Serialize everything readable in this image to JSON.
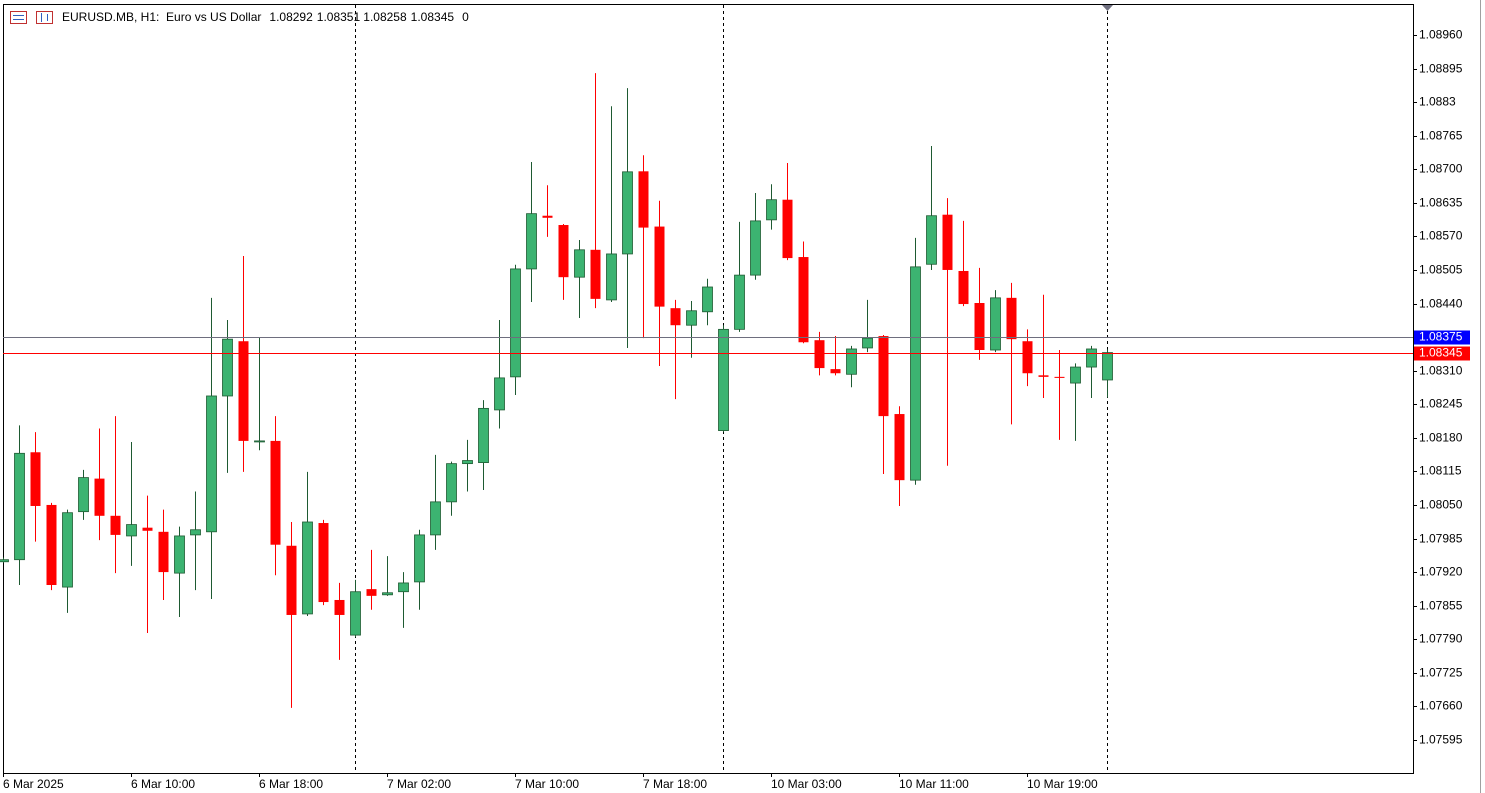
{
  "chart_data": {
    "type": "candlestick",
    "title": "EURUSD.MB, H1:  Euro vs US Dollar",
    "title_tail": "0",
    "up_color": "#3cb371",
    "down_color": "#ff0000",
    "categories": [
      "6 Mar 2025",
      null,
      null,
      null,
      null,
      null,
      null,
      null,
      "6 Mar 10:00",
      null,
      null,
      null,
      null,
      null,
      null,
      null,
      "6 Mar 18:00",
      null,
      null,
      null,
      null,
      null,
      null,
      null,
      "7 Mar 02:00",
      null,
      null,
      null,
      null,
      null,
      null,
      null,
      "7 Mar 10:00",
      null,
      null,
      null,
      null,
      null,
      null,
      null,
      "7 Mar 18:00",
      null,
      null,
      null,
      null,
      null,
      null,
      null,
      "10 Mar 03:00",
      null,
      null,
      null,
      null,
      null,
      null,
      null,
      "10 Mar 11:00",
      null,
      null,
      null,
      null,
      null,
      null,
      null,
      "10 Mar 19:00",
      null,
      null,
      null,
      null,
      null
    ],
    "open": [
      1.0794,
      1.07944,
      1.08152,
      1.0805,
      1.07891,
      1.08037,
      1.08101,
      1.08029,
      1.0799,
      1.08006,
      1.07998,
      1.07918,
      1.07992,
      1.07998,
      1.08261,
      1.08367,
      1.08172,
      1.08174,
      1.07971,
      1.07839,
      1.08015,
      1.07866,
      1.07798,
      1.07887,
      1.07876,
      1.07882,
      1.07901,
      1.07992,
      1.08056,
      1.0813,
      1.08132,
      1.08234,
      1.08298,
      1.08507,
      1.0861,
      1.08592,
      1.08491,
      1.08544,
      1.08447,
      1.08536,
      1.08696,
      1.08589,
      1.08431,
      1.08398,
      1.08424,
      1.08194,
      1.0839,
      1.08495,
      1.08602,
      1.08641,
      1.0853,
      1.08369,
      1.08313,
      1.08303,
      1.08354,
      1.08377,
      1.08226,
      1.08098,
      1.08516,
      1.08612,
      1.08503,
      1.08441,
      1.0835,
      1.08451,
      1.08367,
      1.08301,
      1.08298,
      1.08286,
      1.08317,
      1.08292
    ],
    "high": [
      1.07948,
      1.08204,
      1.08191,
      1.08054,
      1.08041,
      1.08118,
      1.08198,
      1.08222,
      1.08172,
      1.08068,
      1.08041,
      1.08008,
      1.08076,
      1.08451,
      1.08408,
      1.08532,
      1.08375,
      1.08222,
      1.08017,
      1.08114,
      1.08021,
      1.07899,
      1.07905,
      1.07963,
      1.07951,
      1.0792,
      1.08002,
      1.08147,
      1.08134,
      1.08176,
      1.08253,
      1.08408,
      1.08515,
      1.08714,
      1.08669,
      1.08594,
      1.08563,
      1.08886,
      1.08822,
      1.08857,
      1.08727,
      1.08639,
      1.08447,
      1.08445,
      1.08488,
      1.08398,
      1.08598,
      1.08654,
      1.08671,
      1.08712,
      1.0856,
      1.08385,
      1.08377,
      1.08358,
      1.08447,
      1.08379,
      1.08241,
      1.08567,
      1.08745,
      1.08644,
      1.086,
      1.08509,
      1.08466,
      1.0848,
      1.0839,
      1.08457,
      1.0835,
      1.08324,
      1.08358,
      1.08351
    ],
    "low": [
      1.07938,
      1.07895,
      1.07979,
      1.07885,
      1.07841,
      1.08021,
      1.07982,
      1.07918,
      1.07932,
      1.07802,
      1.07866,
      1.07833,
      1.07885,
      1.07868,
      1.08112,
      1.08114,
      1.08156,
      1.07914,
      1.07657,
      1.07835,
      1.07856,
      1.0775,
      1.07794,
      1.07847,
      1.07874,
      1.07812,
      1.07847,
      1.07963,
      1.08029,
      1.08076,
      1.08079,
      1.08198,
      1.08263,
      1.08443,
      1.08569,
      1.08447,
      1.08412,
      1.08431,
      1.08443,
      1.08354,
      1.08373,
      1.08319,
      1.08255,
      1.08335,
      1.08398,
      1.08191,
      1.08385,
      1.08486,
      1.08583,
      1.08524,
      1.08363,
      1.08301,
      1.08301,
      1.08278,
      1.08346,
      1.0811,
      1.08048,
      1.08089,
      1.08505,
      1.08126,
      1.08435,
      1.08331,
      1.08346,
      1.08206,
      1.0828,
      1.08257,
      1.08176,
      1.08174,
      1.08257,
      1.08258
    ],
    "close": [
      1.07944,
      1.0815,
      1.08048,
      1.07895,
      1.08035,
      1.08103,
      1.08029,
      1.07992,
      1.08012,
      1.08,
      1.0792,
      1.0799,
      1.08002,
      1.08261,
      1.08371,
      1.08174,
      1.08174,
      1.07973,
      1.07837,
      1.08017,
      1.07862,
      1.07837,
      1.07882,
      1.07874,
      1.0788,
      1.07899,
      1.07992,
      1.08056,
      1.0813,
      1.08136,
      1.08237,
      1.08296,
      1.08507,
      1.08614,
      1.08606,
      1.08491,
      1.08544,
      1.08449,
      1.08536,
      1.08695,
      1.08587,
      1.08434,
      1.08398,
      1.08426,
      1.08472,
      1.0839,
      1.08495,
      1.086,
      1.08641,
      1.08528,
      1.08365,
      1.08315,
      1.08305,
      1.08352,
      1.08373,
      1.08222,
      1.08098,
      1.08511,
      1.0861,
      1.08505,
      1.08439,
      1.0835,
      1.08451,
      1.08371,
      1.08305,
      1.08298,
      1.08296,
      1.08317,
      1.08352,
      1.08345
    ],
    "price_lines": [
      {
        "value": 1.08375,
        "color": "#0000ff",
        "line_color": "#6e6e7e"
      },
      {
        "value": 1.08345,
        "color": "#ff0000",
        "line_color": "#ff0000"
      }
    ],
    "ylim": [
      1.07531,
      1.09018
    ],
    "yticks": [
      {
        "value": 1.0896,
        "label": "1.08960"
      },
      1.08895,
      1.0883,
      1.08765,
      {
        "value": 1.087,
        "label": "1.08700"
      },
      1.08635,
      {
        "value": 1.0857,
        "label": "1.08570"
      },
      1.08505,
      {
        "value": 1.0844,
        "label": "1.08440"
      },
      {
        "value": 1.0831,
        "label": "1.08310"
      },
      1.08245,
      {
        "value": 1.0818,
        "label": "1.08180"
      },
      1.08115,
      {
        "value": 1.0805,
        "label": "1.08050"
      },
      1.07985,
      {
        "value": 1.0792,
        "label": "1.07920"
      },
      1.07855,
      {
        "value": 1.0779,
        "label": "1.07790"
      },
      1.07725,
      {
        "value": 1.0766,
        "label": "1.07660"
      },
      1.07595
    ],
    "grid": false
  }
}
